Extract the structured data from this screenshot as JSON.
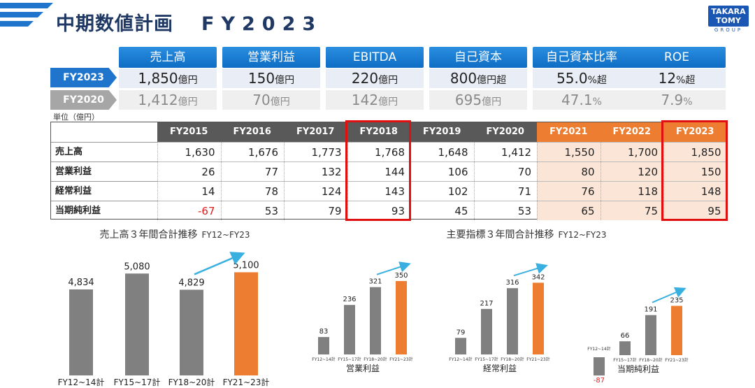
{
  "header": {
    "title": "中期数値計画",
    "fy_label": "FY2023",
    "brand_line1": "TAKARA",
    "brand_line2": "TOMY",
    "brand_sub": "GROUP"
  },
  "kpi": {
    "headers": [
      "売上高",
      "営業利益",
      "EBITDA",
      "自己資本",
      "自己資本比率",
      "ROE"
    ],
    "row_fy2023_label": "FY2023",
    "row_fy2020_label": "FY2020",
    "fy2023": [
      {
        "num": "1,850",
        "unit": "億円"
      },
      {
        "num": "150",
        "unit": "億円"
      },
      {
        "num": "220",
        "unit": "億円"
      },
      {
        "num": "800",
        "unit": "億円超"
      },
      {
        "num": "55.0",
        "unit": "%超"
      },
      {
        "num": "12",
        "unit": "%超"
      }
    ],
    "fy2020": [
      {
        "num": "1,412",
        "unit": "億円"
      },
      {
        "num": "70",
        "unit": "億円"
      },
      {
        "num": "142",
        "unit": "億円"
      },
      {
        "num": "695",
        "unit": "億円"
      },
      {
        "num": "47.1",
        "unit": "%"
      },
      {
        "num": "7.9",
        "unit": "%"
      }
    ]
  },
  "unit_note": "単位（億円）",
  "table": {
    "columns": [
      "FY2015",
      "FY2016",
      "FY2017",
      "FY2018",
      "FY2019",
      "FY2020",
      "FY2021",
      "FY2022",
      "FY2023"
    ],
    "forecast_columns": [
      "FY2021",
      "FY2022",
      "FY2023"
    ],
    "highlight_columns": [
      "FY2018",
      "FY2023"
    ],
    "rows": [
      {
        "label": "売上高",
        "values": [
          "1,630",
          "1,676",
          "1,773",
          "1,768",
          "1,648",
          "1,412",
          "1,550",
          "1,700",
          "1,850"
        ]
      },
      {
        "label": "営業利益",
        "values": [
          "26",
          "77",
          "132",
          "144",
          "106",
          "70",
          "80",
          "120",
          "150"
        ]
      },
      {
        "label": "経常利益",
        "values": [
          "14",
          "78",
          "124",
          "143",
          "102",
          "71",
          "76",
          "118",
          "148"
        ]
      },
      {
        "label": "当期純利益",
        "values": [
          "-67",
          "53",
          "79",
          "93",
          "45",
          "53",
          "65",
          "75",
          "95"
        ]
      }
    ]
  },
  "chart_data": [
    {
      "type": "bar",
      "title": "売上高３年間合計推移",
      "title_suffix": "FY12~FY23",
      "categories": [
        "FY12~14計",
        "FY15~17計",
        "FY18~20計",
        "FY21~23計"
      ],
      "values": [
        4834,
        5080,
        4829,
        5100
      ],
      "value_labels": [
        "4,834",
        "5,080",
        "4,829",
        "5,100"
      ],
      "highlight_index": 3,
      "colors": {
        "bar": "#808080",
        "highlight": "#ed7d31",
        "arrow": "#3ab0e0"
      }
    },
    {
      "type": "bar",
      "title": "主要指標３年間合計推移",
      "title_suffix": "FY12~FY23",
      "panels": [
        {
          "name": "営業利益",
          "categories": [
            "FY12~14計",
            "FY15~17計",
            "FY18~20計",
            "FY21~23計"
          ],
          "values": [
            83,
            236,
            321,
            350
          ]
        },
        {
          "name": "経常利益",
          "categories": [
            "FY12~14計",
            "FY15~17計",
            "FY18~20計",
            "FY21~23計"
          ],
          "values": [
            79,
            217,
            316,
            342
          ]
        },
        {
          "name": "当期純利益",
          "categories": [
            "FY12~14計",
            "FY15~17計",
            "FY18~20計",
            "FY21~23計"
          ],
          "values": [
            -87,
            66,
            191,
            235
          ]
        }
      ],
      "highlight_index": 3,
      "colors": {
        "bar": "#808080",
        "highlight": "#ed7d31",
        "negative_label": "#e02020",
        "arrow": "#3ab0e0"
      }
    }
  ]
}
